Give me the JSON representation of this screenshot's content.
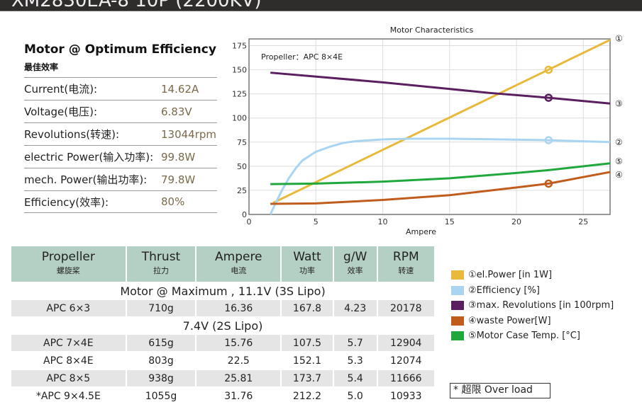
{
  "header": {
    "title": "XM2830EA-8 10P (2200KV)"
  },
  "optimum": {
    "title": "Motor @ Optimum Efficiency",
    "subtitle": "最佳效率",
    "rows": [
      {
        "label": "Current(电流):",
        "value": "14.62A"
      },
      {
        "label": "Voltage(电压):",
        "value": "6.83V"
      },
      {
        "label": "Revolutions(转速):",
        "value": "13044rpm"
      },
      {
        "label": "electric Power(输入功率):",
        "value": "99.8W"
      },
      {
        "label": "mech. Power(输出功率):",
        "value": "79.8W"
      },
      {
        "label": "Efficiency(效率):",
        "value": "80%"
      }
    ]
  },
  "chart_data": {
    "type": "line",
    "title": "Motor Characteristics",
    "xlabel": "Ampere",
    "ylabel": "",
    "annotation": "Propeller：APC 8×4E",
    "xlim": [
      0,
      27
    ],
    "ylim": [
      0,
      182
    ],
    "xticks": [
      0,
      5,
      10,
      15,
      20,
      25
    ],
    "yticks": [
      0,
      25,
      50,
      75,
      100,
      125,
      150,
      175
    ],
    "grid": true,
    "marker_x": 22.4,
    "series": [
      {
        "name": "el.Power [in 1W]",
        "num": "①",
        "color": "#e8b93a",
        "points": [
          [
            1.8,
            12
          ],
          [
            27,
            181
          ]
        ],
        "marker": 150
      },
      {
        "name": "Efficiency [%]",
        "num": "②",
        "color": "#a9d4f2",
        "points": [
          [
            1.6,
            0
          ],
          [
            2,
            12
          ],
          [
            2.5,
            26
          ],
          [
            3,
            38
          ],
          [
            3.5,
            48
          ],
          [
            4,
            56
          ],
          [
            5,
            65
          ],
          [
            6,
            70
          ],
          [
            7,
            74
          ],
          [
            8,
            76
          ],
          [
            10,
            77.8
          ],
          [
            12,
            78.5
          ],
          [
            15,
            78.5
          ],
          [
            18,
            78
          ],
          [
            22.4,
            77
          ],
          [
            27,
            75
          ]
        ],
        "marker": 77
      },
      {
        "name": "max. Revolutions [in 100rpm]",
        "num": "③",
        "color": "#5b1e5f",
        "points": [
          [
            1.6,
            147
          ],
          [
            10,
            137
          ],
          [
            18,
            126
          ],
          [
            22.4,
            121
          ],
          [
            27,
            115
          ]
        ],
        "marker": 121
      },
      {
        "name": "waste Power[W]",
        "num": "④",
        "color": "#c05c1c",
        "points": [
          [
            1.6,
            11
          ],
          [
            5,
            11.5
          ],
          [
            10,
            15
          ],
          [
            15,
            20
          ],
          [
            20,
            28
          ],
          [
            22.4,
            32
          ],
          [
            27,
            44
          ]
        ],
        "marker": 32
      },
      {
        "name": "Motor Case Temp. [°C]",
        "num": "⑤",
        "color": "#20a83c",
        "points": [
          [
            1.6,
            31.5
          ],
          [
            5,
            32
          ],
          [
            10,
            34
          ],
          [
            15,
            37.5
          ],
          [
            20,
            43
          ],
          [
            22.4,
            46
          ],
          [
            27,
            53
          ]
        ]
      }
    ]
  },
  "table": {
    "headers": [
      {
        "en": "Propeller",
        "cn": "螺旋桨"
      },
      {
        "en": "Thrust",
        "cn": "拉力"
      },
      {
        "en": "Ampere",
        "cn": "电流"
      },
      {
        "en": "Watt",
        "cn": "功率"
      },
      {
        "en": "g/W",
        "cn": "效率"
      },
      {
        "en": "RPM",
        "cn": "转速"
      }
    ],
    "section1": "Motor @ Maximum , 11.1V (3S Lipo)",
    "rows1": [
      [
        "APC 6×3",
        "710g",
        "16.36",
        "167.8",
        "4.23",
        "20178"
      ]
    ],
    "section2": "7.4V (2S Lipo)",
    "rows2": [
      [
        "APC 7×4E",
        "615g",
        "15.76",
        "107.5",
        "5.7",
        "12904"
      ],
      [
        "APC 8×4E",
        "803g",
        "22.5",
        "152.1",
        "5.3",
        "12074"
      ],
      [
        "APC 8×5",
        "938g",
        "25.81",
        "173.7",
        "5.4",
        "11666"
      ],
      [
        "*APC 9×4.5E",
        "1055g",
        "31.76",
        "212.2",
        "5.0",
        "10933"
      ]
    ]
  },
  "legend": [
    {
      "num": "①",
      "label": "el.Power [in 1W]",
      "color": "#e8b93a"
    },
    {
      "num": "②",
      "label": "Efficiency [%]",
      "color": "#a9d4f2"
    },
    {
      "num": "③",
      "label": "max. Revolutions [in 100rpm]",
      "color": "#5b1e5f"
    },
    {
      "num": "④",
      "label": "waste Power[W]",
      "color": "#c05c1c"
    },
    {
      "num": "⑤",
      "label": "Motor Case Temp. [°C]",
      "color": "#20a83c"
    }
  ],
  "note": "* 超限 Over load"
}
